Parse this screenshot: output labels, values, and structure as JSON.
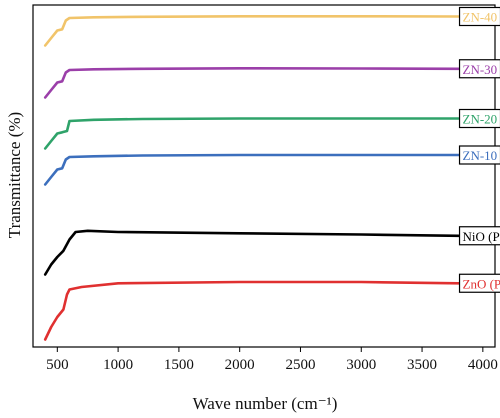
{
  "chart_data": {
    "type": "line",
    "title": "",
    "xlabel": "Wave number (cm⁻¹)",
    "ylabel": "Transmittance (%)",
    "xlim": [
      300,
      4100
    ],
    "x_ticks": [
      500,
      1000,
      1500,
      2000,
      2500,
      3000,
      3500,
      4000
    ],
    "x_tick_labels": [
      "500",
      "1000",
      "1500",
      "2000",
      "2500",
      "3000",
      "3500",
      "4000"
    ],
    "y_ticks_visible": false,
    "grid": false,
    "legend_placement": "inline-right",
    "series": [
      {
        "name": "ZN-40",
        "color": "#f1c46a",
        "points": [
          [
            400,
            -1.1
          ],
          [
            450,
            -0.8
          ],
          [
            500,
            -0.5
          ],
          [
            540,
            -0.45
          ],
          [
            570,
            -0.1
          ],
          [
            600,
            0.0
          ],
          [
            800,
            0.03
          ],
          [
            1200,
            0.05
          ],
          [
            2000,
            0.07
          ],
          [
            3000,
            0.07
          ],
          [
            3800,
            0.06
          ]
        ]
      },
      {
        "name": "ZN-30",
        "color": "#9b3fa9",
        "points": [
          [
            400,
            -1.1
          ],
          [
            450,
            -0.8
          ],
          [
            500,
            -0.5
          ],
          [
            540,
            -0.45
          ],
          [
            570,
            -0.1
          ],
          [
            600,
            0.0
          ],
          [
            800,
            0.03
          ],
          [
            1200,
            0.05
          ],
          [
            2000,
            0.07
          ],
          [
            3000,
            0.06
          ],
          [
            3800,
            0.05
          ]
        ]
      },
      {
        "name": "ZN-20",
        "color": "#2fa36a",
        "points": [
          [
            400,
            -1.1
          ],
          [
            450,
            -0.8
          ],
          [
            500,
            -0.5
          ],
          [
            540,
            -0.45
          ],
          [
            580,
            -0.4
          ],
          [
            600,
            0.0
          ],
          [
            800,
            0.05
          ],
          [
            1200,
            0.08
          ],
          [
            2000,
            0.1
          ],
          [
            3000,
            0.1
          ],
          [
            3800,
            0.1
          ]
        ]
      },
      {
        "name": "ZN-10",
        "color": "#3c6fbd",
        "points": [
          [
            400,
            -1.1
          ],
          [
            450,
            -0.8
          ],
          [
            500,
            -0.5
          ],
          [
            540,
            -0.45
          ],
          [
            570,
            -0.1
          ],
          [
            600,
            0.0
          ],
          [
            800,
            0.03
          ],
          [
            1200,
            0.06
          ],
          [
            2000,
            0.08
          ],
          [
            3000,
            0.08
          ],
          [
            3800,
            0.08
          ]
        ]
      },
      {
        "name": "NiO (P)",
        "color": "#000000",
        "points": [
          [
            400,
            -1.7
          ],
          [
            450,
            -1.3
          ],
          [
            500,
            -1.0
          ],
          [
            550,
            -0.75
          ],
          [
            600,
            -0.3
          ],
          [
            650,
            0.0
          ],
          [
            750,
            0.05
          ],
          [
            1000,
            0.0
          ],
          [
            2000,
            -0.05
          ],
          [
            3000,
            -0.1
          ],
          [
            3800,
            -0.15
          ]
        ]
      },
      {
        "name": "ZnO (P)",
        "color": "#e03030",
        "points": [
          [
            400,
            -2.3
          ],
          [
            450,
            -1.8
          ],
          [
            500,
            -1.4
          ],
          [
            550,
            -1.1
          ],
          [
            580,
            -0.5
          ],
          [
            600,
            -0.3
          ],
          [
            700,
            -0.2
          ],
          [
            1000,
            -0.05
          ],
          [
            2000,
            0.0
          ],
          [
            3000,
            0.0
          ],
          [
            3800,
            -0.05
          ]
        ]
      }
    ]
  }
}
